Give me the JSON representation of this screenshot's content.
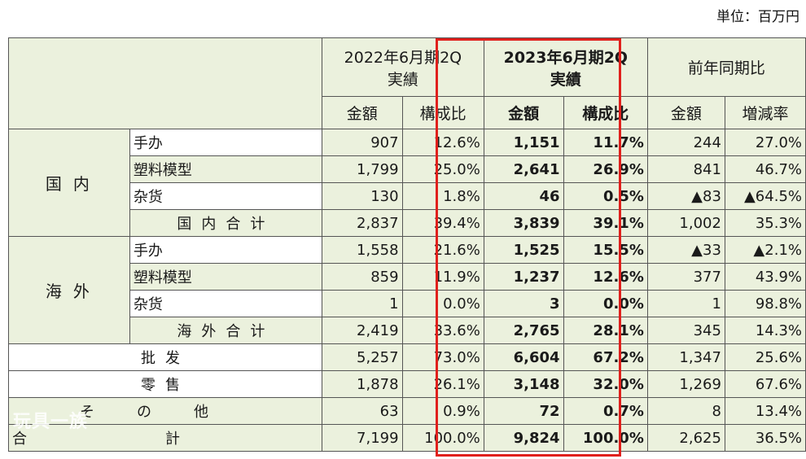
{
  "unit": "単位：百万円",
  "header": {
    "period_prev_line1": "2022年6月期2Q",
    "period_prev_line2": "実績",
    "period_curr_line1": "2023年6月期2Q",
    "period_curr_line2": "実績",
    "yoy": "前年同期比",
    "amount": "金額",
    "ratio": "構成比",
    "change": "増減率"
  },
  "domestic": {
    "label": "国内",
    "rows": [
      {
        "name": "手办",
        "prev_amt": "907",
        "prev_ratio": "12.6%",
        "cur_amt": "1,151",
        "cur_ratio": "11.7%",
        "diff": "244",
        "rate": "27.0%"
      },
      {
        "name": "塑料模型",
        "prev_amt": "1,799",
        "prev_ratio": "25.0%",
        "cur_amt": "2,641",
        "cur_ratio": "26.9%",
        "diff": "841",
        "rate": "46.7%"
      },
      {
        "name": "杂货",
        "prev_amt": "130",
        "prev_ratio": "1.8%",
        "cur_amt": "46",
        "cur_ratio": "0.5%",
        "diff": "▲83",
        "rate": "▲64.5%"
      }
    ],
    "total": {
      "name": "国内合计",
      "prev_amt": "2,837",
      "prev_ratio": "39.4%",
      "cur_amt": "3,839",
      "cur_ratio": "39.1%",
      "diff": "1,002",
      "rate": "35.3%"
    }
  },
  "overseas": {
    "label": "海外",
    "rows": [
      {
        "name": "手办",
        "prev_amt": "1,558",
        "prev_ratio": "21.6%",
        "cur_amt": "1,525",
        "cur_ratio": "15.5%",
        "diff": "▲33",
        "rate": "▲2.1%"
      },
      {
        "name": "塑料模型",
        "prev_amt": "859",
        "prev_ratio": "11.9%",
        "cur_amt": "1,237",
        "cur_ratio": "12.6%",
        "diff": "377",
        "rate": "43.9%"
      },
      {
        "name": "杂货",
        "prev_amt": "1",
        "prev_ratio": "0.0%",
        "cur_amt": "3",
        "cur_ratio": "0.0%",
        "diff": "1",
        "rate": "98.8%"
      }
    ],
    "total": {
      "name": "海外合计",
      "prev_amt": "2,419",
      "prev_ratio": "33.6%",
      "cur_amt": "2,765",
      "cur_ratio": "28.1%",
      "diff": "345",
      "rate": "14.3%"
    }
  },
  "wholesale": {
    "name": "批发",
    "prev_amt": "5,257",
    "prev_ratio": "73.0%",
    "cur_amt": "6,604",
    "cur_ratio": "67.2%",
    "diff": "1,347",
    "rate": "25.6%"
  },
  "retail": {
    "name": "零售",
    "prev_amt": "1,878",
    "prev_ratio": "26.1%",
    "cur_amt": "3,148",
    "cur_ratio": "32.0%",
    "diff": "1,269",
    "rate": "67.6%"
  },
  "other": {
    "name": "その他",
    "prev_amt": "63",
    "prev_ratio": "0.9%",
    "cur_amt": "72",
    "cur_ratio": "0.7%",
    "diff": "8",
    "rate": "13.4%"
  },
  "grand_total": {
    "name": "合計",
    "prev_amt": "7,199",
    "prev_ratio": "100.0%",
    "cur_amt": "9,824",
    "cur_ratio": "100.0%",
    "diff": "2,625",
    "rate": "36.5%"
  },
  "watermark": "玩具一族",
  "colors": {
    "header_bg": "#ebf1dd",
    "highlight": "#e0201c",
    "border": "#555555"
  }
}
